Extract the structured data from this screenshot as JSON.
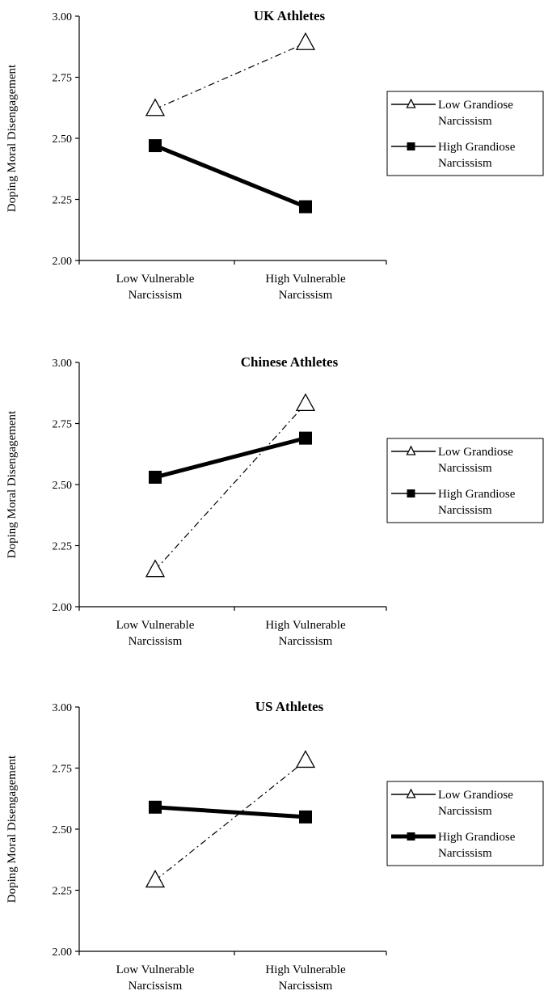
{
  "chart_data": [
    {
      "type": "line",
      "title": "UK Athletes",
      "ylabel": "Doping Moral Disengagement",
      "xlabel": "",
      "categories": [
        "Low Vulnerable Narcissism",
        "High Vulnerable Narcissism"
      ],
      "ylim": [
        2.0,
        3.0
      ],
      "yticks": [
        "2.00",
        "2.25",
        "2.50",
        "2.75",
        "3.00"
      ],
      "grid": false,
      "legend_position": "right",
      "series": [
        {
          "name": "Low Grandiose Narcissism",
          "values": [
            2.62,
            2.89
          ],
          "marker": "triangle-open",
          "line": "dash-dot"
        },
        {
          "name": "High Grandiose Narcissism",
          "values": [
            2.47,
            2.22
          ],
          "marker": "square-filled",
          "line": "solid-thick"
        }
      ]
    },
    {
      "type": "line",
      "title": "Chinese Athletes",
      "ylabel": "Doping Moral Disengagement",
      "xlabel": "",
      "categories": [
        "Low Vulnerable Narcissism",
        "High Vulnerable Narcissism"
      ],
      "ylim": [
        2.0,
        3.0
      ],
      "yticks": [
        "2.00",
        "2.25",
        "2.50",
        "2.75",
        "3.00"
      ],
      "grid": false,
      "legend_position": "right",
      "series": [
        {
          "name": "Low Grandiose Narcissism",
          "values": [
            2.15,
            2.83
          ],
          "marker": "triangle-open",
          "line": "dash-dot"
        },
        {
          "name": "High Grandiose Narcissism",
          "values": [
            2.53,
            2.69
          ],
          "marker": "square-filled",
          "line": "solid-thick"
        }
      ]
    },
    {
      "type": "line",
      "title": "US Athletes",
      "ylabel": "Doping Moral Disengagement",
      "xlabel": "",
      "categories": [
        "Low Vulnerable Narcissism",
        "High Vulnerable Narcissism"
      ],
      "ylim": [
        2.0,
        3.0
      ],
      "yticks": [
        "2.00",
        "2.25",
        "2.50",
        "2.75",
        "3.00"
      ],
      "grid": false,
      "legend_position": "right",
      "series": [
        {
          "name": "Low Grandiose Narcissism",
          "values": [
            2.29,
            2.78
          ],
          "marker": "triangle-open",
          "line": "dash-dot"
        },
        {
          "name": "High Grandiose Narcissism",
          "values": [
            2.59,
            2.55
          ],
          "marker": "square-filled",
          "line": "solid-thick"
        }
      ]
    }
  ]
}
